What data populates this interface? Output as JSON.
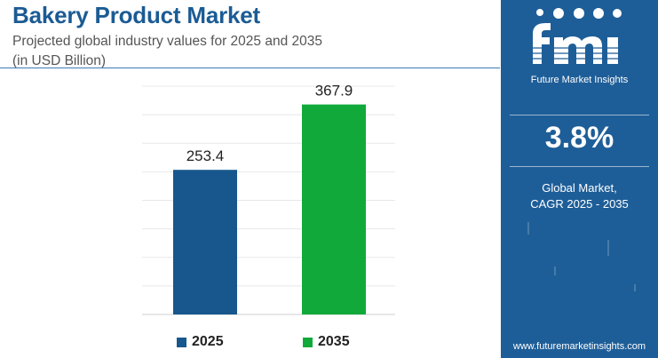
{
  "header": {
    "title": "Bakery Product Market",
    "subtitle_line1": "Projected global industry values for 2025 and 2035",
    "subtitle_line2": "(in USD Billion)"
  },
  "chart_data": {
    "type": "bar",
    "categories": [
      "2025",
      "2035"
    ],
    "values": [
      253.4,
      367.9
    ],
    "value_labels": [
      "253.4",
      "367.9"
    ],
    "colors": [
      "#17578e",
      "#11a93a"
    ],
    "ylim": [
      0,
      400
    ],
    "grid": true,
    "legend": "bottom",
    "legend_entries": [
      "2025",
      "2035"
    ]
  },
  "sidebar": {
    "logo_text": "Future Market Insights",
    "cagr_value": "3.8%",
    "cagr_label_line1": "Global Market,",
    "cagr_label_line2": "CAGR 2025 - 2035",
    "website": "www.futuremarketinsights.com",
    "background_color": "#1e5e98"
  }
}
